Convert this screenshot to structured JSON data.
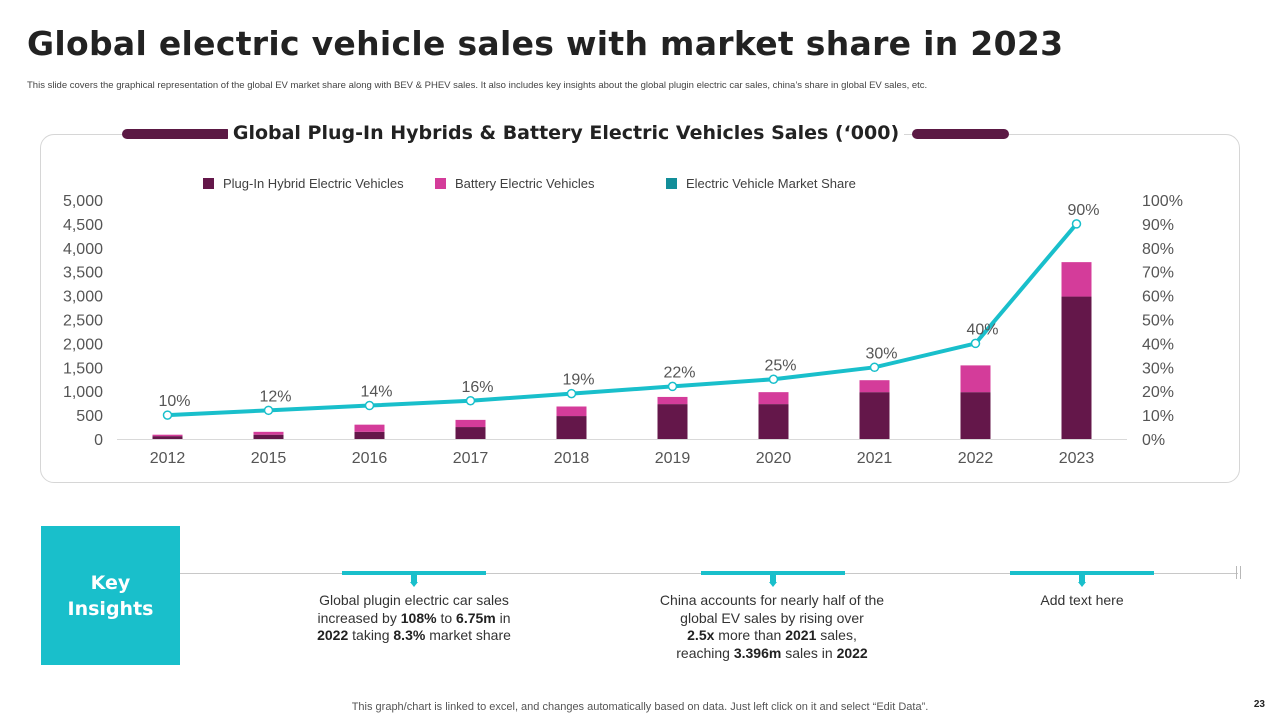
{
  "title": "Global electric vehicle sales with market share in 2023",
  "subtitle": "This slide covers the graphical representation of the global EV  market share along  with BEV & PHEV  sales. It also includes key insights about the global plugin electric car sales, china’s share in global EV sales, etc.",
  "colors": {
    "phev": "#64174a",
    "bev": "#d43c9a",
    "share_line": "#19bfcb",
    "accent": "#19bfcb",
    "deco": "#5b1944"
  },
  "chart_data": {
    "type": "bar",
    "title": "Global Plug-In Hybrids & Battery Electric Vehicles Sales (‘000)",
    "categories": [
      "2012",
      "2015",
      "2016",
      "2017",
      "2018",
      "2019",
      "2020",
      "2021",
      "2022",
      "2023"
    ],
    "series": [
      {
        "name": "Plug-In Hybrid Electric Vehicles",
        "type": "bar",
        "stack": "sales",
        "color": "#64174a",
        "values": [
          60,
          90,
          150,
          250,
          480,
          730,
          730,
          980,
          980,
          2980
        ]
      },
      {
        "name": "Battery Electric Vehicles",
        "type": "bar",
        "stack": "sales",
        "color": "#d43c9a",
        "values": [
          30,
          60,
          150,
          150,
          200,
          150,
          250,
          250,
          560,
          720
        ]
      },
      {
        "name": "Electric Vehicle Market  Share",
        "type": "line",
        "axis": "right",
        "color": "#19bfcb",
        "values": [
          10,
          12,
          14,
          16,
          19,
          22,
          25,
          30,
          40,
          90
        ]
      }
    ],
    "data_labels": [
      "10%",
      "12%",
      "14%",
      "16%",
      "19%",
      "22%",
      "25%",
      "30%",
      "40%",
      "90%"
    ],
    "y_left": {
      "min": 0,
      "max": 5000,
      "ticks": [
        "0",
        "500",
        "1,000",
        "1,500",
        "2,000",
        "2,500",
        "3,000",
        "3,500",
        "4,000",
        "4,500",
        "5,000"
      ]
    },
    "y_right": {
      "min": 0,
      "max": 100,
      "ticks": [
        "0%",
        "10%",
        "20%",
        "30%",
        "40%",
        "50%",
        "60%",
        "70%",
        "80%",
        "90%",
        "100%"
      ]
    },
    "legend_position": "top",
    "grid": false
  },
  "key_insights": {
    "label_line1": "Key",
    "label_line2": "Insights",
    "items": [
      {
        "segments": [
          {
            "text": "Global plugin electric car sales",
            "bold": false
          },
          {
            "text": " increased by ",
            "bold": false,
            "br": true
          },
          {
            "text": "108%",
            "bold": true
          },
          {
            "text": " to ",
            "bold": false
          },
          {
            "text": "6.75m",
            "bold": true
          },
          {
            "text": " in",
            "bold": false
          },
          {
            "text": "2022",
            "bold": true,
            "br": true
          },
          {
            "text": " taking ",
            "bold": false
          },
          {
            "text": "8.3%",
            "bold": true
          },
          {
            "text": " market share",
            "bold": false
          }
        ]
      },
      {
        "segments": [
          {
            "text": "China accounts for nearly half of the",
            "bold": false
          },
          {
            "text": "global EV sales by rising over",
            "bold": false,
            "br": true
          },
          {
            "text": "2.5x",
            "bold": true,
            "br": true
          },
          {
            "text": " more than ",
            "bold": false
          },
          {
            "text": "2021",
            "bold": true
          },
          {
            "text": " sales,",
            "bold": false
          },
          {
            "text": "reaching ",
            "bold": false,
            "br": true
          },
          {
            "text": "3.396m",
            "bold": true
          },
          {
            "text": "  sales in ",
            "bold": false
          },
          {
            "text": "2022",
            "bold": true
          }
        ]
      },
      {
        "segments": [
          {
            "text": "Add text here",
            "bold": false
          }
        ]
      }
    ]
  },
  "footer": "This graph/chart is linked to excel,  and changes automatically based on data. Just left click on it and select “Edit Data”.",
  "page_number": "23"
}
